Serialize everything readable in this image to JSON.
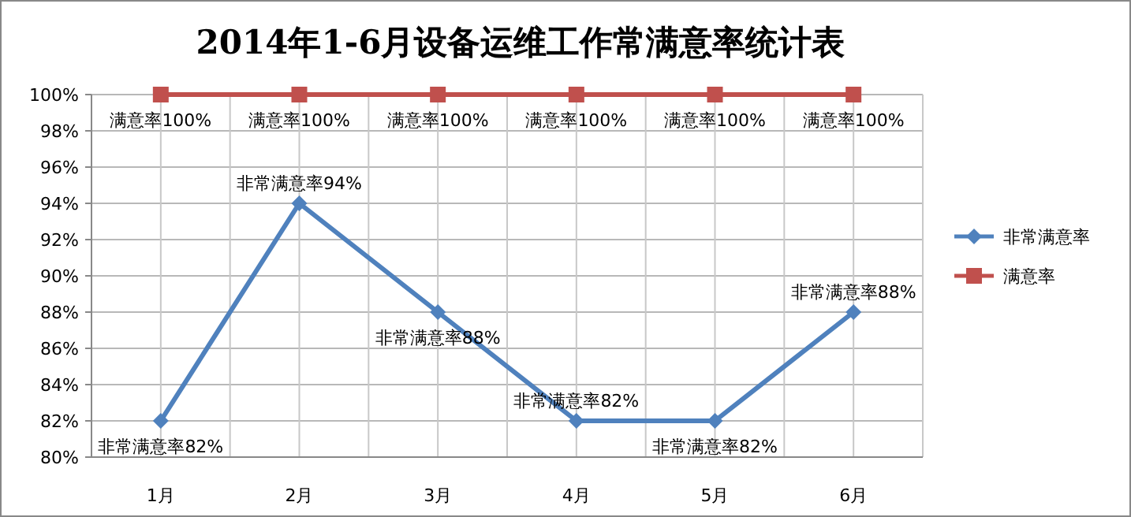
{
  "chart_data": {
    "type": "line",
    "title": "2014年1-6月设备运维工作常满意率统计表",
    "categories": [
      "1月",
      "2月",
      "3月",
      "4月",
      "5月",
      "6月"
    ],
    "series": [
      {
        "name": "非常满意率",
        "color": "#4f81bd",
        "marker": "diamond",
        "values": [
          82,
          94,
          88,
          82,
          82,
          88
        ],
        "value_labels": [
          "非常满意率82%",
          "非常满意率94%",
          "非常满意率88%",
          "非常满意率82%",
          "非常满意率82%",
          "非常满意率88%"
        ]
      },
      {
        "name": "满意率",
        "color": "#c0504d",
        "marker": "square",
        "values": [
          100,
          100,
          100,
          100,
          100,
          100
        ],
        "value_labels": [
          "满意率100%",
          "满意率100%",
          "满意率100%",
          "满意率100%",
          "满意率100%",
          "满意率100%"
        ]
      }
    ],
    "ylim": [
      80,
      100
    ],
    "yticks": [
      {
        "value": 80,
        "label": "80%"
      },
      {
        "value": 82,
        "label": "82%"
      },
      {
        "value": 84,
        "label": "84%"
      },
      {
        "value": 86,
        "label": "86%"
      },
      {
        "value": 88,
        "label": "88%"
      },
      {
        "value": 90,
        "label": "90%"
      },
      {
        "value": 92,
        "label": "92%"
      },
      {
        "value": 94,
        "label": "94%"
      },
      {
        "value": 96,
        "label": "96%"
      },
      {
        "value": 98,
        "label": "98%"
      },
      {
        "value": 100,
        "label": "100%"
      }
    ],
    "grid": true,
    "legend": "right",
    "line_style": "solid"
  }
}
